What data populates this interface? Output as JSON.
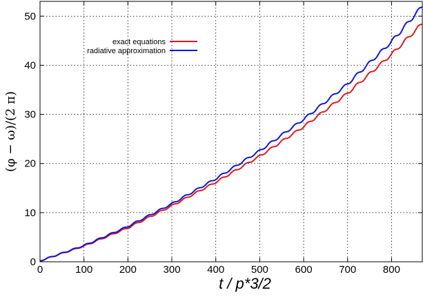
{
  "chart_data": {
    "type": "line",
    "title": "",
    "xlabel": "t / p*3/2",
    "ylabel": "(φ − ω)/(2 π)",
    "xlim": [
      0,
      870
    ],
    "ylim": [
      0,
      53
    ],
    "x_ticks": [
      0,
      100,
      200,
      300,
      400,
      500,
      600,
      700,
      800
    ],
    "y_ticks": [
      0,
      10,
      20,
      30,
      40,
      50
    ],
    "grid": true,
    "legend_position": "top-left",
    "series": [
      {
        "name": "exact equations",
        "color": "#e0191b",
        "step_period": 28,
        "x": [
          0,
          100,
          200,
          300,
          400,
          500,
          600,
          700,
          800,
          870
        ],
        "y": [
          0.2,
          3.2,
          6.9,
          11.4,
          16.2,
          21.5,
          27.5,
          34.3,
          42.2,
          48.5
        ]
      },
      {
        "name": "radiative approximation",
        "color": "#1016d6",
        "step_period": 28,
        "x": [
          0,
          100,
          200,
          300,
          400,
          500,
          600,
          700,
          800,
          870
        ],
        "y": [
          0.2,
          3.3,
          7.2,
          11.8,
          16.9,
          22.6,
          29.0,
          36.2,
          44.8,
          52.0
        ]
      }
    ]
  }
}
